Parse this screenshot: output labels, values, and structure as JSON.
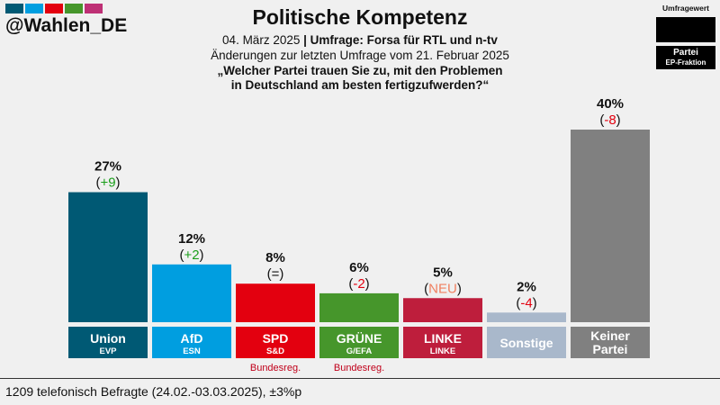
{
  "header": {
    "handle": "@Wahlen_DE",
    "title": "Politische Kompetenz",
    "date": "04. März 2025",
    "separator": "|",
    "institute": "Umfrage: Forsa für RTL und n-tv",
    "changes_note": "Änderungen zur letzten Umfrage vom 21. Februar 2025",
    "question_line1": "„Welcher Partei trauen Sie zu, mit den Problemen",
    "question_line2": "in Deutschland am besten fertigzufwerden?“"
  },
  "legend": {
    "value_label": "Umfragewert",
    "party_label": "Partei",
    "group_label": "EP-Fraktion"
  },
  "swatch_colors": [
    "#005974",
    "#009ee0",
    "#e3000f",
    "#46962b",
    "#be3075"
  ],
  "chart_data": {
    "type": "bar",
    "ylim": [
      0,
      40
    ],
    "categories": [
      "Union",
      "AfD",
      "SPD",
      "GRÜNE",
      "LINKE",
      "Sonstige",
      "Keiner Partei"
    ],
    "groups": [
      "EVP",
      "ESN",
      "S&D",
      "G/EFA",
      "LINKE",
      "",
      ""
    ],
    "values": [
      27,
      12,
      8,
      6,
      5,
      2,
      40
    ],
    "value_labels": [
      "27%",
      "12%",
      "8%",
      "6%",
      "5%",
      "2%",
      "40%"
    ],
    "change_labels": [
      "+9",
      "+2",
      "=",
      "-2",
      "NEU",
      "-4",
      "-8"
    ],
    "change_colors": [
      "#1a9e1a",
      "#1a9e1a",
      "#111111",
      "#e3000f",
      "#f08060",
      "#e3000f",
      "#e3000f"
    ],
    "colors": [
      "#005974",
      "#009ee0",
      "#e3000f",
      "#46962b",
      "#be1e3c",
      "#a9b8cb",
      "#808080"
    ],
    "notes": [
      "",
      "",
      "Bundesreg.",
      "Bundesreg.",
      "",
      "",
      ""
    ],
    "note_color": "#c0001a"
  },
  "footer": {
    "text": "1209 telefonisch Befragte (24.02.-03.03.2025), ±3%p"
  }
}
